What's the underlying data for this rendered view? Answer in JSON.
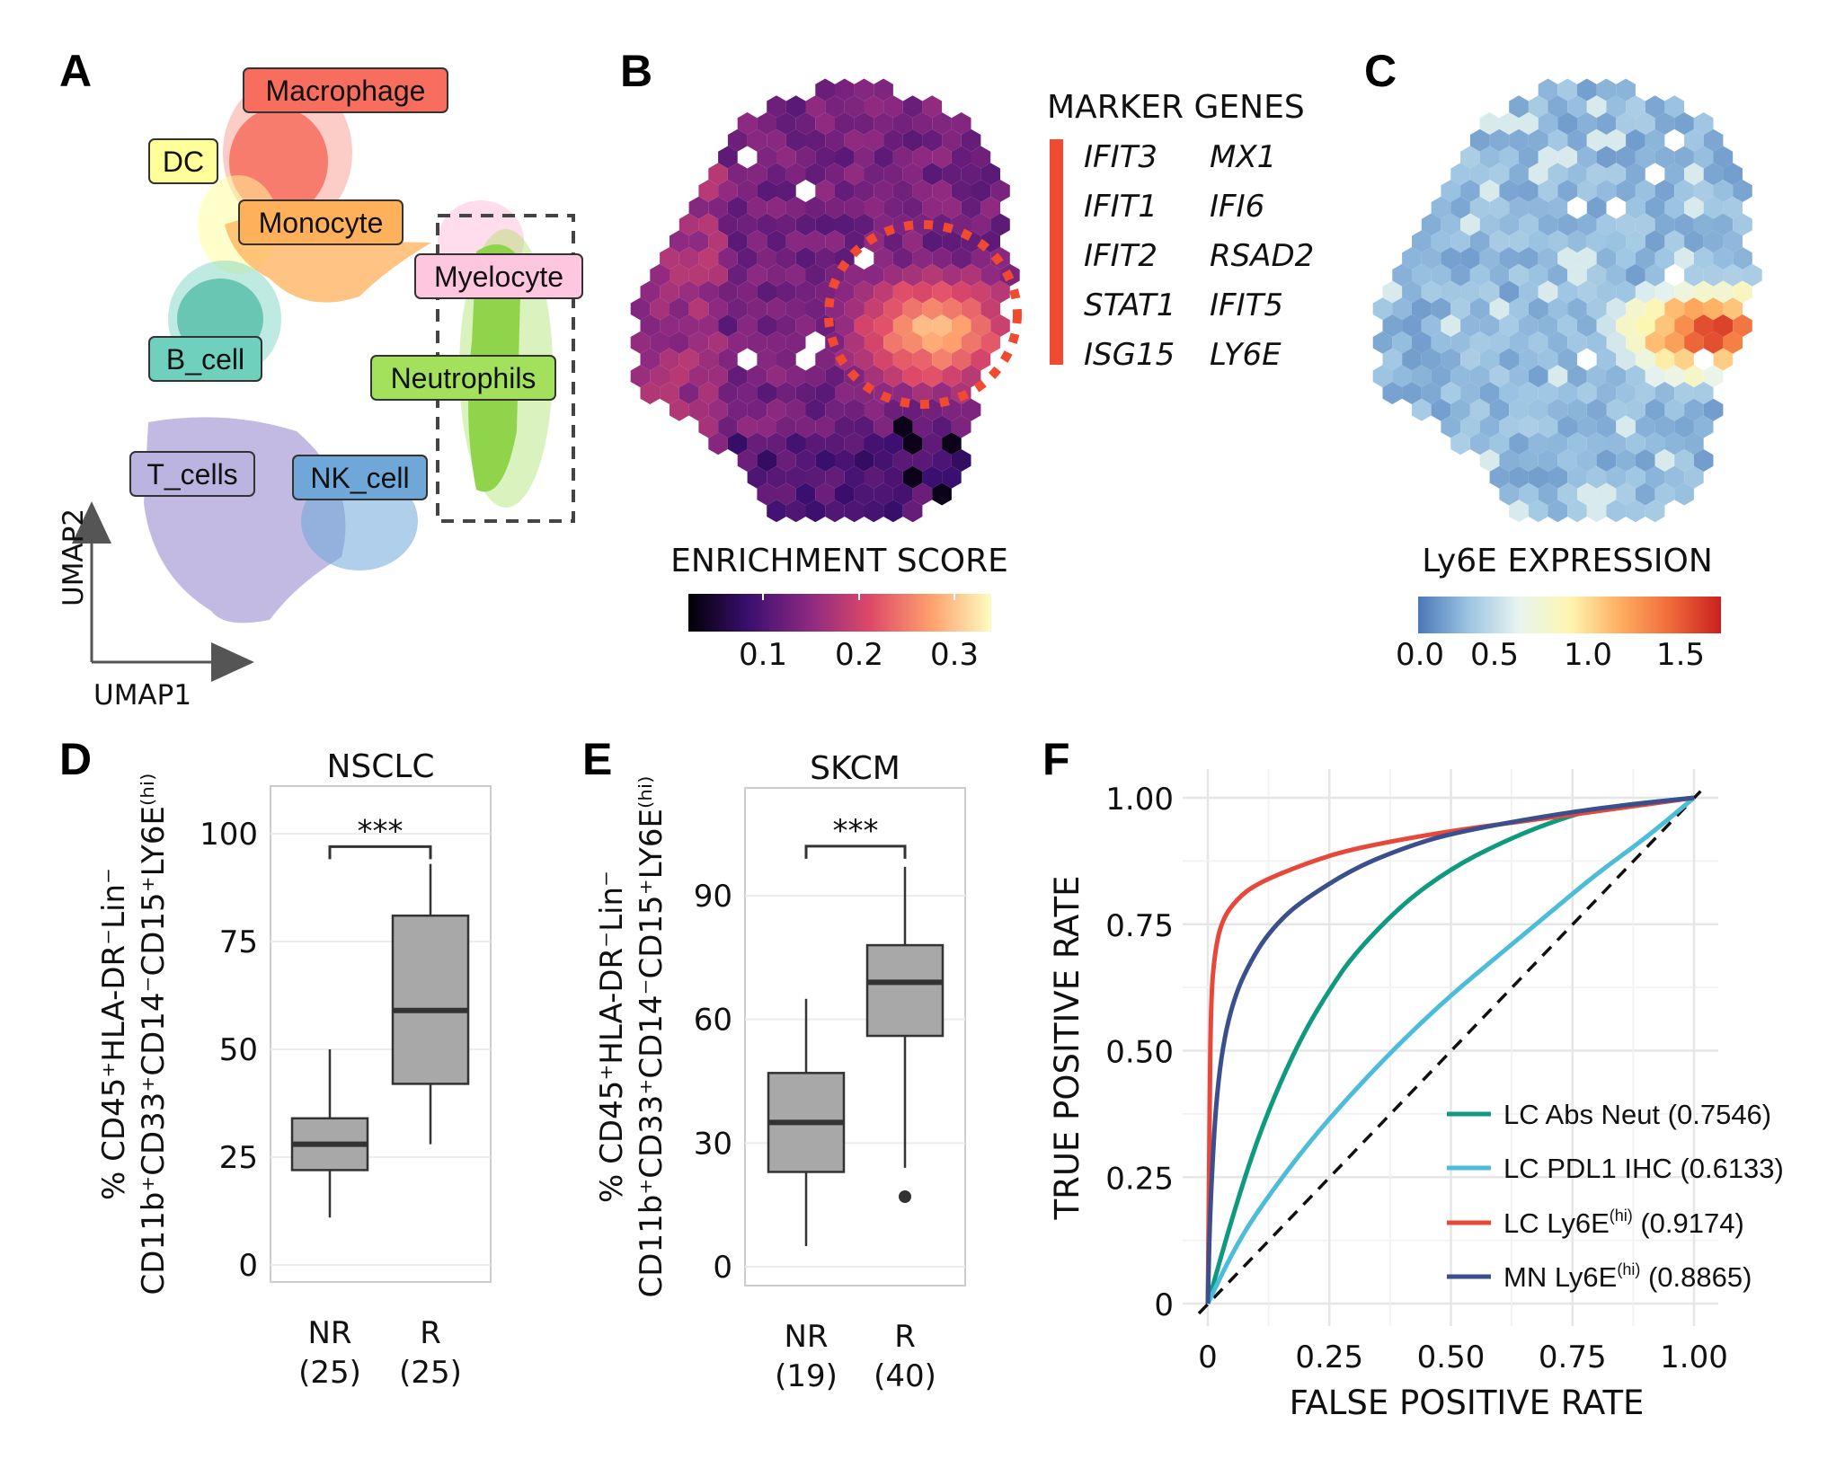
{
  "panels": {
    "a": "A",
    "b": "B",
    "c": "C",
    "d": "D",
    "e": "E",
    "f": "F"
  },
  "panel_a": {
    "clusters": [
      {
        "label": "Macrophage",
        "color": "#f76d5e"
      },
      {
        "label": "DC",
        "color": "#ffff99"
      },
      {
        "label": "Monocyte",
        "color": "#ffb05a"
      },
      {
        "label": "Myelocyte",
        "color": "#ffc6e0"
      },
      {
        "label": "B_cell",
        "color": "#6fd0bd"
      },
      {
        "label": "Neutrophils",
        "color": "#a3e05c"
      },
      {
        "label": "T_cells",
        "color": "#bbb3e0"
      },
      {
        "label": "NK_cell",
        "color": "#6fa8d8"
      }
    ],
    "xaxis": "UMAP1",
    "yaxis": "UMAP2"
  },
  "panel_b": {
    "colorbar_title": "ENRICHMENT SCORE",
    "ticks": [
      "0.1",
      "0.2",
      "0.3"
    ],
    "colormap": [
      "#000004",
      "#3b0f70",
      "#8c2981",
      "#de4968",
      "#fe9f6d",
      "#fcfdbf"
    ],
    "highlight_color": "#f04a30"
  },
  "marker_genes": {
    "title": "MARKER GENES",
    "col1": [
      "IFIT3",
      "IFIT1",
      "IFIT2",
      "STAT1",
      "ISG15"
    ],
    "col2": [
      "MX1",
      "IFI6",
      "RSAD2",
      "IFIT5",
      "LY6E"
    ],
    "bar_color": "#f04a30"
  },
  "panel_c": {
    "colorbar_title": "Ly6E EXPRESSION",
    "ticks": [
      "0.0",
      "0.5",
      "1.0",
      "1.5"
    ],
    "colormap": [
      "#4a78b8",
      "#9cc4e2",
      "#e8f4f0",
      "#fdf6b0",
      "#fdae61",
      "#f06a3a",
      "#c8201e"
    ]
  },
  "chart_data": [
    {
      "type": "box",
      "title": "NSCLC",
      "ylabel_line1": "% CD45⁺HLA-DR⁻Lin⁻",
      "ylabel_line2": "CD11b⁺CD33⁺CD14⁻CD15⁺LY6E⁽ʰⁱ⁾",
      "ylim": [
        -5,
        115
      ],
      "yticks": [
        "0",
        "25",
        "50",
        "75",
        "100"
      ],
      "ytick_values": [
        0,
        25,
        50,
        75,
        100
      ],
      "categories": [
        "NR",
        "R"
      ],
      "counts": [
        "(25)",
        "(25)"
      ],
      "boxes": [
        {
          "min": 11,
          "q1": 22,
          "median": 28,
          "q3": 34,
          "max": 50,
          "outliers": []
        },
        {
          "min": 28,
          "q1": 42,
          "median": 59,
          "q3": 81,
          "max": 93,
          "outliers": []
        }
      ],
      "significance": "***",
      "bracket_y": 97
    },
    {
      "type": "box",
      "title": "SKCM",
      "ylabel_line1": "% CD45⁺HLA-DR⁻Lin⁻",
      "ylabel_line2": "CD11b⁺CD33⁺CD14⁻CD15⁺LY6E⁽ʰⁱ⁾",
      "ylim": [
        -5,
        115
      ],
      "yticks": [
        "0",
        "30",
        "60",
        "90"
      ],
      "ytick_values": [
        0,
        30,
        60,
        90
      ],
      "categories": [
        "NR",
        "R"
      ],
      "counts": [
        "(19)",
        "(40)"
      ],
      "boxes": [
        {
          "min": 5,
          "q1": 23,
          "median": 35,
          "q3": 47,
          "max": 65,
          "outliers": []
        },
        {
          "min": 24,
          "q1": 56,
          "median": 69,
          "q3": 78,
          "max": 97,
          "outliers": [
            17
          ]
        }
      ],
      "significance": "***",
      "bracket_y": 102
    },
    {
      "type": "line",
      "xlabel": "FALSE POSITIVE RATE",
      "ylabel": "TRUE POSITIVE RATE",
      "xlim": [
        0,
        1
      ],
      "ylim": [
        0,
        1
      ],
      "xticks": [
        "0",
        "0.25",
        "0.50",
        "0.75",
        "1.00"
      ],
      "yticks": [
        "0",
        "0.25",
        "0.50",
        "0.75",
        "1.00"
      ],
      "grid": true,
      "legend_position": "bottom-right",
      "series": [
        {
          "name": "LC Abs Neut (0.7546)",
          "color": "#0f9a80",
          "points": [
            [
              0,
              0
            ],
            [
              0.05,
              0.17
            ],
            [
              0.1,
              0.32
            ],
            [
              0.15,
              0.44
            ],
            [
              0.2,
              0.54
            ],
            [
              0.25,
              0.62
            ],
            [
              0.3,
              0.69
            ],
            [
              0.4,
              0.79
            ],
            [
              0.5,
              0.86
            ],
            [
              0.6,
              0.91
            ],
            [
              0.7,
              0.95
            ],
            [
              0.8,
              0.98
            ],
            [
              1,
              1
            ]
          ]
        },
        {
          "name": "LC PDL1 IHC (0.6133)",
          "color": "#4cbcd8",
          "points": [
            [
              0,
              0
            ],
            [
              0.05,
              0.1
            ],
            [
              0.1,
              0.18
            ],
            [
              0.2,
              0.31
            ],
            [
              0.3,
              0.42
            ],
            [
              0.4,
              0.52
            ],
            [
              0.5,
              0.61
            ],
            [
              0.6,
              0.69
            ],
            [
              0.7,
              0.77
            ],
            [
              0.8,
              0.85
            ],
            [
              0.9,
              0.92
            ],
            [
              1,
              1
            ]
          ]
        },
        {
          "name": "LC Ly6E(hi) (0.9174)",
          "label_main": "LC Ly6E",
          "label_sup": "(hi)",
          "label_tail": " (0.9174)",
          "color": "#e8483a",
          "points": [
            [
              0,
              0
            ],
            [
              0.003,
              0.3
            ],
            [
              0.006,
              0.6
            ],
            [
              0.015,
              0.7
            ],
            [
              0.03,
              0.76
            ],
            [
              0.06,
              0.8
            ],
            [
              0.1,
              0.83
            ],
            [
              0.2,
              0.87
            ],
            [
              0.3,
              0.9
            ],
            [
              0.5,
              0.935
            ],
            [
              0.7,
              0.96
            ],
            [
              0.85,
              0.98
            ],
            [
              1,
              1
            ]
          ]
        },
        {
          "name": "MN Ly6E(hi) (0.8865)",
          "label_main": "MN Ly6E",
          "label_sup": "(hi)",
          "label_tail": " (0.8865)",
          "color": "#3a4f8c",
          "points": [
            [
              0,
              0
            ],
            [
              0.005,
              0.2
            ],
            [
              0.02,
              0.45
            ],
            [
              0.05,
              0.6
            ],
            [
              0.1,
              0.7
            ],
            [
              0.15,
              0.76
            ],
            [
              0.2,
              0.8
            ],
            [
              0.3,
              0.86
            ],
            [
              0.4,
              0.9
            ],
            [
              0.5,
              0.93
            ],
            [
              0.7,
              0.965
            ],
            [
              0.85,
              0.985
            ],
            [
              1,
              1
            ]
          ]
        }
      ],
      "reference_line": "diagonal dashed"
    }
  ]
}
